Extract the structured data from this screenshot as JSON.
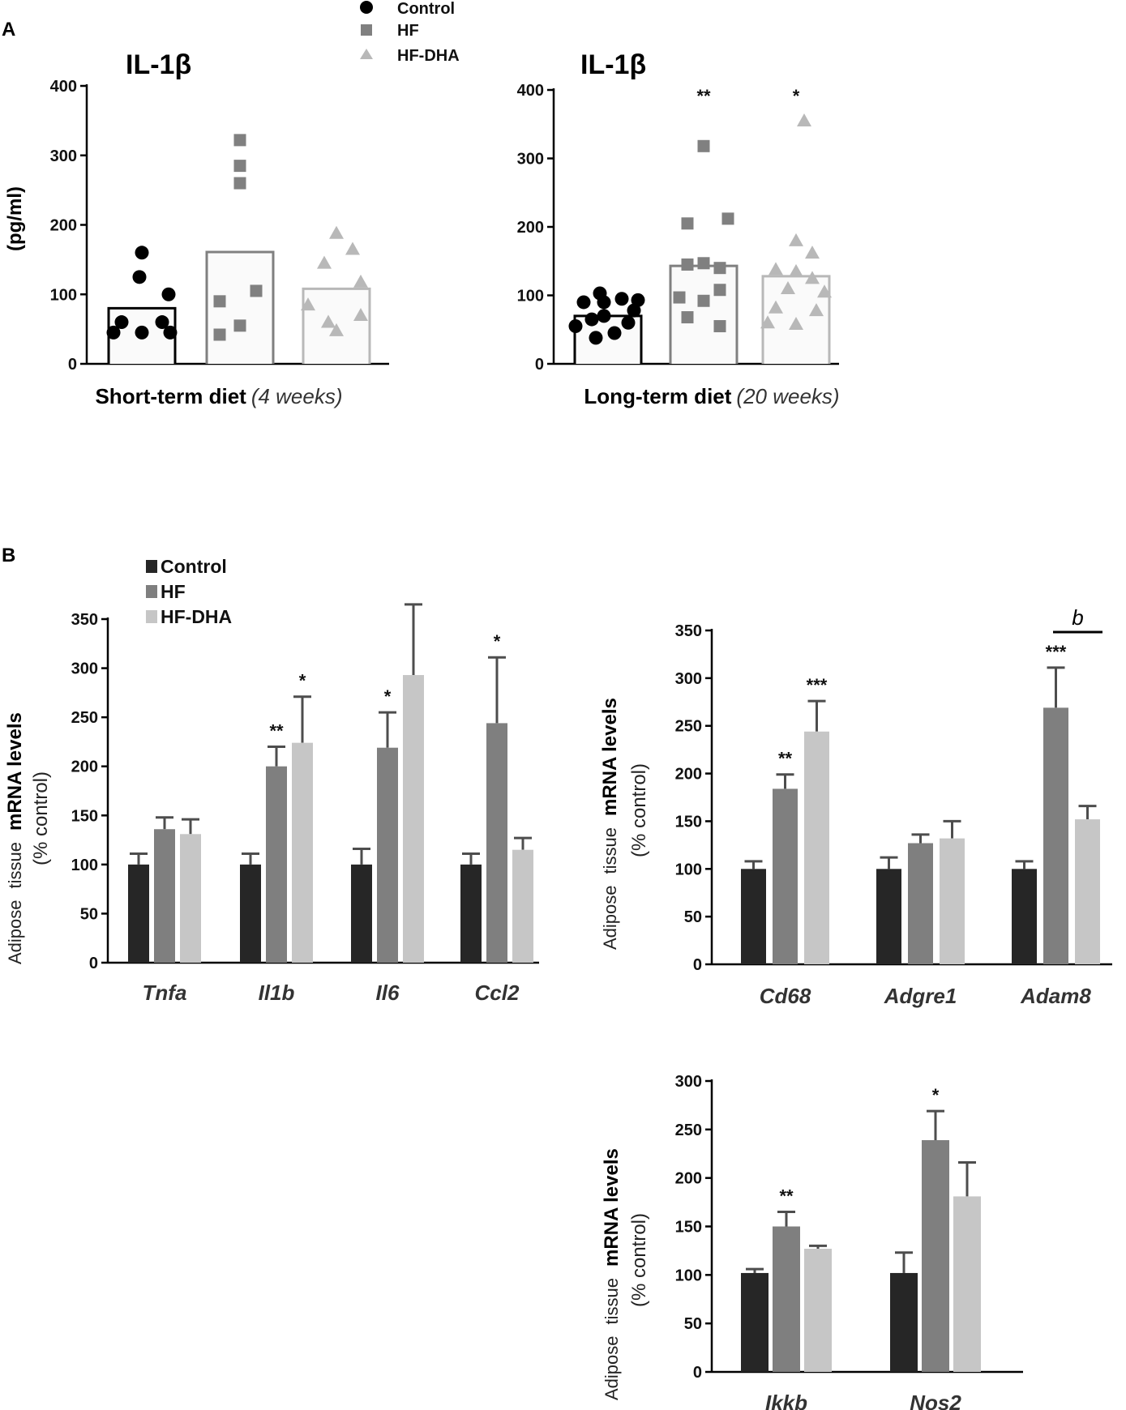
{
  "panels": {
    "a_label": "A",
    "b_label": "B"
  },
  "colors": {
    "control": "#000000",
    "hf": "#808080",
    "hfdha": "#b8b8b8",
    "bar_control": "#262626",
    "bar_hf": "#7f7f7f",
    "bar_hfdha": "#c6c6c6",
    "err": "#4d4d4d"
  },
  "legend_a": [
    "Control",
    "HF",
    "HF-DHA"
  ],
  "legend_b": [
    "Control",
    "HF",
    "HF-DHA"
  ],
  "ylabel_a": "(pg/ml)",
  "ylabel_b": {
    "word1": "Adipose",
    "word2": "tissue",
    "word3": "mRNA levels",
    "line2": "(% control)"
  },
  "chart_data": [
    {
      "id": "a_short",
      "type": "scatter",
      "title": "IL-1β",
      "xlabel_bold": "Short-term diet",
      "xlabel_italic": "(4 weeks)",
      "ylabel": "(pg/ml)",
      "ylim": [
        0,
        400
      ],
      "yticks": [
        0,
        100,
        200,
        300,
        400
      ],
      "series": [
        {
          "name": "Control",
          "marker": "circle",
          "mean": 80,
          "points": [
            160,
            125,
            100,
            60,
            60,
            45,
            45,
            45
          ]
        },
        {
          "name": "HF",
          "marker": "square",
          "mean": 161,
          "points": [
            322,
            285,
            260,
            105,
            90,
            55,
            42
          ]
        },
        {
          "name": "HF-DHA",
          "marker": "triangle",
          "mean": 108,
          "points": [
            188,
            165,
            145,
            118,
            85,
            70,
            60,
            48
          ]
        }
      ],
      "significance": [
        "",
        "",
        ""
      ]
    },
    {
      "id": "a_long",
      "type": "scatter",
      "title": "IL-1β",
      "xlabel_bold": "Long-term diet",
      "xlabel_italic": "(20 weeks)",
      "ylim": [
        0,
        400
      ],
      "yticks": [
        0,
        100,
        200,
        300,
        400
      ],
      "series": [
        {
          "name": "Control",
          "marker": "circle",
          "mean": 70,
          "points": [
            103,
            95,
            93,
            90,
            90,
            78,
            70,
            65,
            60,
            55,
            45,
            38
          ]
        },
        {
          "name": "HF",
          "marker": "square",
          "mean": 143,
          "points": [
            318,
            212,
            205,
            147,
            145,
            140,
            108,
            97,
            92,
            68,
            55
          ]
        },
        {
          "name": "HF-DHA",
          "marker": "triangle",
          "mean": 128,
          "points": [
            355,
            180,
            162,
            138,
            135,
            125,
            110,
            105,
            82,
            78,
            60,
            58
          ]
        }
      ],
      "significance": [
        "",
        "**",
        "*"
      ]
    },
    {
      "id": "b1",
      "type": "bar",
      "categories": [
        "Tnfa",
        "Il1b",
        "Il6",
        "Ccl2"
      ],
      "ylim": [
        0,
        350
      ],
      "yticks": [
        0,
        50,
        100,
        150,
        200,
        250,
        300,
        350
      ],
      "series": [
        {
          "name": "Control",
          "values": [
            100,
            100,
            100,
            100
          ],
          "errors": [
            11,
            11,
            16,
            11
          ]
        },
        {
          "name": "HF",
          "values": [
            136,
            200,
            219,
            244
          ],
          "errors": [
            12,
            20,
            36,
            67
          ]
        },
        {
          "name": "HF-DHA",
          "values": [
            131,
            224,
            293,
            115
          ],
          "errors": [
            15,
            47,
            72,
            12
          ]
        }
      ],
      "significance": [
        [
          "",
          "",
          ""
        ],
        [
          "",
          "**",
          "*"
        ],
        [
          "",
          "*",
          ""
        ],
        [
          "",
          "*",
          ""
        ]
      ]
    },
    {
      "id": "b2",
      "type": "bar",
      "categories": [
        "Cd68",
        "Adgre1",
        "Adam8"
      ],
      "ylim": [
        0,
        350
      ],
      "yticks": [
        0,
        50,
        100,
        150,
        200,
        250,
        300,
        350
      ],
      "series": [
        {
          "name": "Control",
          "values": [
            100,
            100,
            100
          ],
          "errors": [
            8,
            12,
            8
          ]
        },
        {
          "name": "HF",
          "values": [
            184,
            127,
            269
          ],
          "errors": [
            15,
            9,
            42
          ]
        },
        {
          "name": "HF-DHA",
          "values": [
            244,
            132,
            152
          ],
          "errors": [
            32,
            18,
            14
          ]
        }
      ],
      "significance": [
        [
          "",
          "**",
          "***"
        ],
        [
          "",
          "",
          ""
        ],
        [
          "",
          "***",
          ""
        ]
      ],
      "bracket_label": "b"
    },
    {
      "id": "b3",
      "type": "bar",
      "categories": [
        "Ikkb",
        "Nos2"
      ],
      "ylim": [
        0,
        300
      ],
      "yticks": [
        0,
        50,
        100,
        150,
        200,
        250,
        300
      ],
      "series": [
        {
          "name": "Control",
          "values": [
            102,
            102
          ],
          "errors": [
            4,
            21
          ]
        },
        {
          "name": "HF",
          "values": [
            150,
            239
          ],
          "errors": [
            15,
            30
          ]
        },
        {
          "name": "HF-DHA",
          "values": [
            127,
            181
          ],
          "errors": [
            3,
            35
          ]
        }
      ],
      "significance": [
        [
          "",
          "**",
          ""
        ],
        [
          "",
          "*",
          ""
        ]
      ]
    }
  ]
}
